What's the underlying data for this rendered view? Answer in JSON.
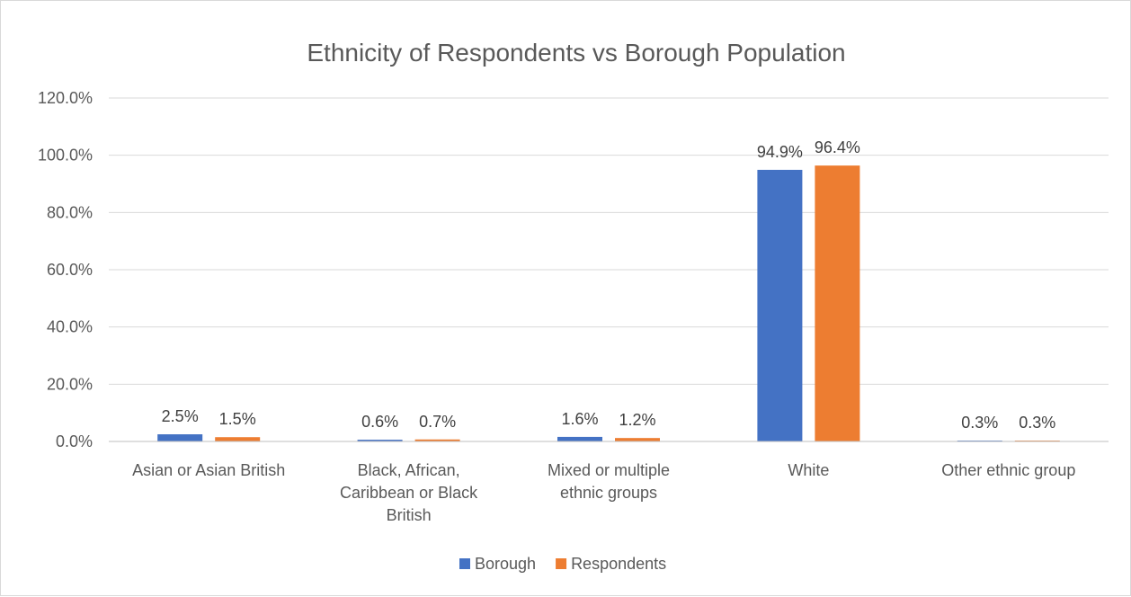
{
  "chart_data": {
    "type": "bar",
    "title": "Ethnicity of Respondents vs Borough Population",
    "xlabel": "",
    "ylabel": "",
    "categories": [
      [
        "Asian or Asian British"
      ],
      [
        "Black, African,",
        "Caribbean or Black",
        "British"
      ],
      [
        "Mixed or multiple",
        "ethnic groups"
      ],
      [
        "White"
      ],
      [
        "Other ethnic group"
      ]
    ],
    "series": [
      {
        "name": "Borough",
        "color": "#4472c4",
        "values": [
          2.5,
          0.6,
          1.6,
          94.9,
          0.3
        ],
        "labels": [
          "2.5%",
          "0.6%",
          "1.6%",
          "94.9%",
          "0.3%"
        ]
      },
      {
        "name": "Respondents",
        "color": "#ed7d31",
        "values": [
          1.5,
          0.7,
          1.2,
          96.4,
          0.3
        ],
        "labels": [
          "1.5%",
          "0.7%",
          "1.2%",
          "96.4%",
          "0.3%"
        ]
      }
    ],
    "ylim": [
      0,
      120
    ],
    "yticks": [
      0,
      20,
      40,
      60,
      80,
      100,
      120
    ],
    "ytick_labels": [
      "0.0%",
      "20.0%",
      "40.0%",
      "60.0%",
      "80.0%",
      "100.0%",
      "120.0%"
    ],
    "grid": true,
    "legend_position": "bottom"
  }
}
